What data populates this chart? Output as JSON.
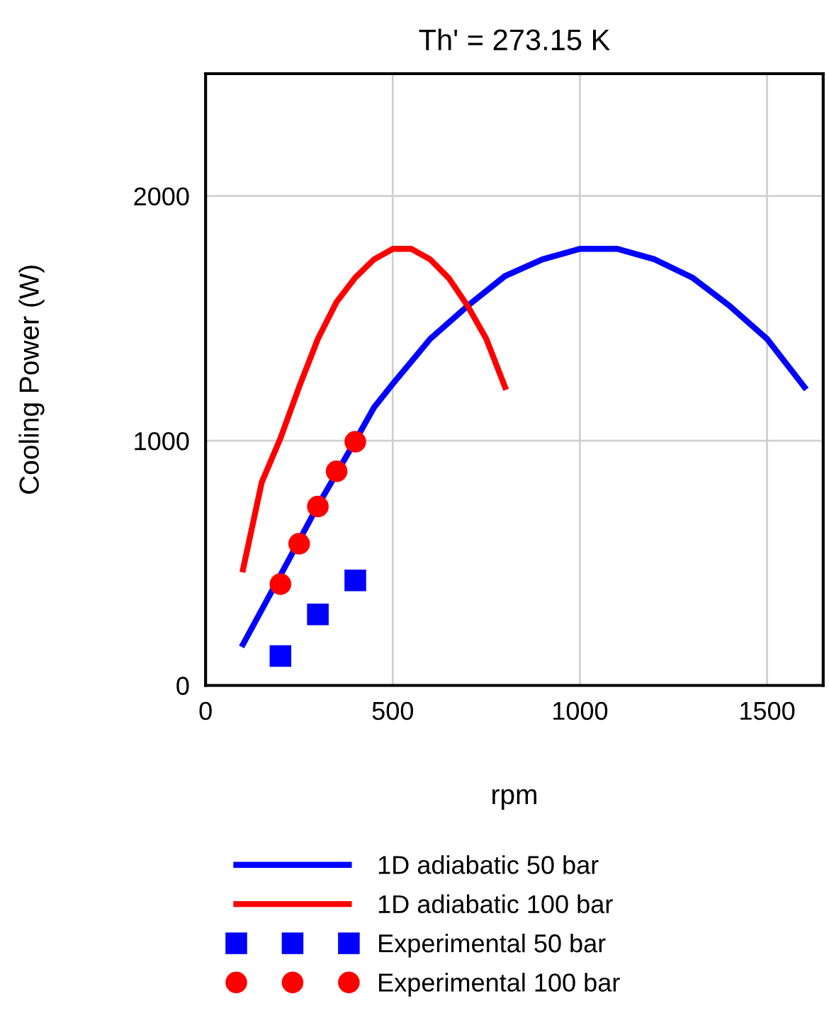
{
  "chart_data": {
    "type": "line",
    "title": "Th' = 273.15 K",
    "xlabel": "rpm",
    "ylabel": "Cooling Power (W)",
    "xlim": [
      0,
      1650
    ],
    "ylim": [
      0,
      2500
    ],
    "xticks": [
      0,
      500,
      1000,
      1500
    ],
    "yticks": [
      0,
      1000,
      2000
    ],
    "grid": true,
    "legend": "bottom",
    "series": [
      {
        "name": "1D adiabatic 50 bar",
        "color": "#0000ff",
        "marker": "none",
        "line_style": "solid",
        "x": [
          100,
          200,
          300,
          400,
          450,
          500,
          600,
          700,
          800,
          900,
          1000,
          1100,
          1200,
          1300,
          1400,
          1500,
          1600
        ],
        "values": [
          168,
          450,
          735,
          1000,
          1136,
          1232,
          1416,
          1551,
          1673,
          1741,
          1784,
          1784,
          1741,
          1667,
          1551,
          1416,
          1219
        ]
      },
      {
        "name": "1D adiabatic 100 bar",
        "color": "#ff0000",
        "marker": "none",
        "line_style": "solid",
        "x": [
          100,
          150,
          200,
          250,
          300,
          350,
          400,
          450,
          500,
          550,
          600,
          650,
          700,
          750,
          800
        ],
        "values": [
          474,
          830,
          1010,
          1220,
          1416,
          1567,
          1667,
          1741,
          1784,
          1784,
          1741,
          1664,
          1551,
          1416,
          1219
        ]
      },
      {
        "name": "Experimental 50 bar",
        "type": "scatter",
        "color": "#0000ff",
        "marker": "square",
        "x": [
          200,
          300,
          400
        ],
        "values": [
          120,
          290,
          429
        ]
      },
      {
        "name": "Experimental 100 bar",
        "type": "scatter",
        "color": "#ff0000",
        "marker": "circle",
        "x": [
          200,
          250,
          300,
          350,
          400
        ],
        "values": [
          414,
          579,
          731,
          875,
          996
        ]
      }
    ]
  }
}
